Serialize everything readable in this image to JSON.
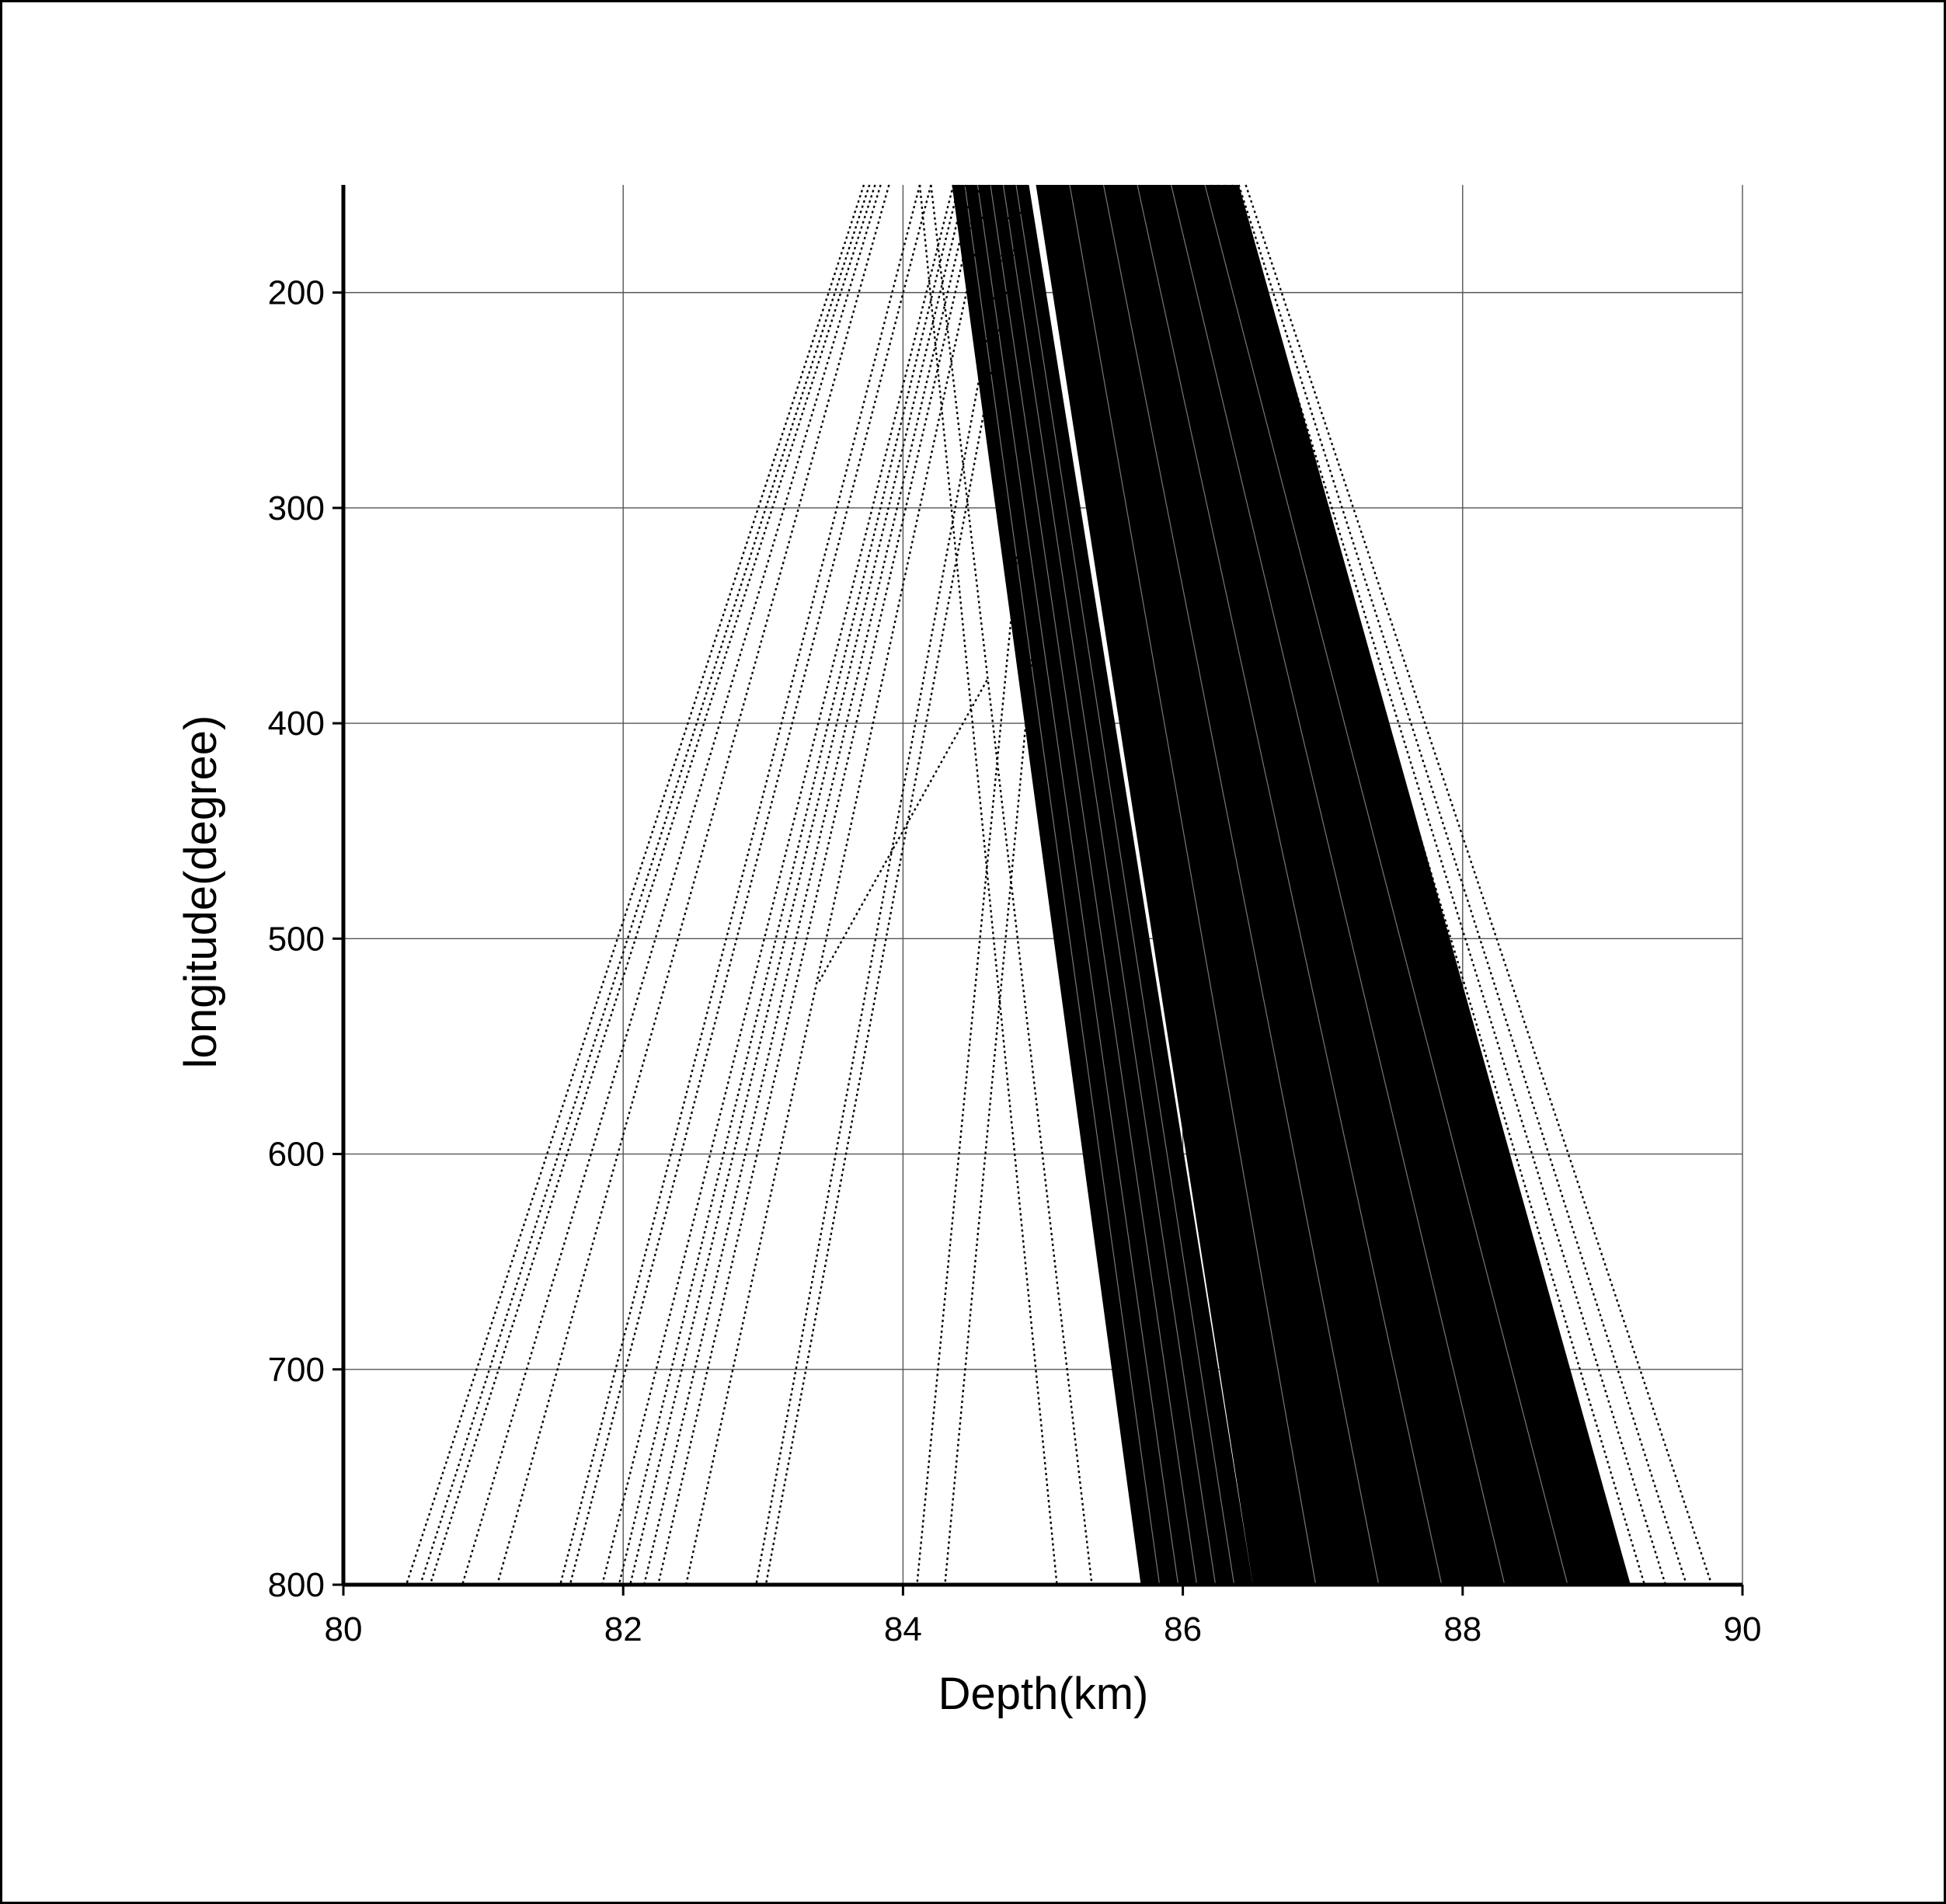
{
  "chart_data": {
    "type": "line",
    "title": "",
    "xlabel": "Depth(km)",
    "ylabel": "longitude(degree)",
    "xlim": [
      80,
      90
    ],
    "ylim": [
      150,
      800
    ],
    "y_inverted": true,
    "grid": true,
    "legend": "none",
    "colors": {
      "line": "#000000",
      "frame": "#000000",
      "grid": "#555555",
      "background": "#ffffff"
    },
    "x_ticks": [
      {
        "value": 80,
        "label": "80"
      },
      {
        "value": 82,
        "label": "82"
      },
      {
        "value": 84,
        "label": "84"
      },
      {
        "value": 86,
        "label": "86"
      },
      {
        "value": 88,
        "label": "88"
      },
      {
        "value": 90,
        "label": "90"
      }
    ],
    "y_ticks": [
      {
        "value": 200,
        "label": "200"
      },
      {
        "value": 300,
        "label": "300"
      },
      {
        "value": 400,
        "label": "400"
      },
      {
        "value": 500,
        "label": "500"
      },
      {
        "value": 600,
        "label": "600"
      },
      {
        "value": 700,
        "label": "700"
      },
      {
        "value": 800,
        "label": "800"
      }
    ],
    "series": [
      {
        "x": [
          83.72,
          80.45
        ],
        "y": [
          150,
          800
        ]
      },
      {
        "x": [
          83.76,
          80.55
        ],
        "y": [
          150,
          800
        ]
      },
      {
        "x": [
          83.8,
          80.62
        ],
        "y": [
          150,
          800
        ]
      },
      {
        "x": [
          83.84,
          80.85
        ],
        "y": [
          150,
          800
        ]
      },
      {
        "x": [
          83.9,
          81.1
        ],
        "y": [
          150,
          800
        ]
      },
      {
        "x": [
          84.12,
          81.55
        ],
        "y": [
          150,
          800
        ]
      },
      {
        "x": [
          84.2,
          81.62
        ],
        "y": [
          150,
          800
        ]
      },
      {
        "x": [
          84.36,
          81.85
        ],
        "y": [
          150,
          800
        ]
      },
      {
        "x": [
          84.4,
          81.97
        ],
        "y": [
          150,
          800
        ]
      },
      {
        "x": [
          84.45,
          82.05
        ],
        "y": [
          150,
          800
        ]
      },
      {
        "x": [
          84.5,
          82.15
        ],
        "y": [
          150,
          800
        ]
      },
      {
        "x": [
          84.55,
          82.25
        ],
        "y": [
          150,
          800
        ]
      },
      {
        "x": [
          84.62,
          82.45
        ],
        "y": [
          150,
          800
        ]
      },
      {
        "x": [
          84.8,
          82.95
        ],
        "y": [
          150,
          800
        ]
      },
      {
        "x": [
          84.88,
          83.02
        ],
        "y": [
          150,
          800
        ]
      },
      {
        "x": [
          84.12,
          85.1
        ],
        "y": [
          150,
          800
        ]
      },
      {
        "x": [
          84.2,
          85.35
        ],
        "y": [
          150,
          800
        ]
      },
      {
        "x": [
          84.85,
          84.1
        ],
        "y": [
          300,
          800
        ]
      },
      {
        "x": [
          84.95,
          84.3
        ],
        "y": [
          350,
          800
        ]
      },
      {
        "x": [
          84.6,
          83.4
        ],
        "y": [
          380,
          520
        ]
      },
      {
        "x": [
          86.2,
          88.9
        ],
        "y": [
          150,
          800
        ]
      },
      {
        "x": [
          86.25,
          89.1
        ],
        "y": [
          150,
          800
        ]
      },
      {
        "x": [
          86.3,
          89.3
        ],
        "y": [
          150,
          800
        ]
      },
      {
        "x": [
          86.35,
          89.45
        ],
        "y": [
          150,
          800
        ]
      },
      {
        "x": [
          86.4,
          89.6
        ],
        "y": [
          150,
          800
        ]
      },
      {
        "x": [
          86.45,
          89.78
        ],
        "y": [
          150,
          800
        ]
      }
    ],
    "bands": [
      {
        "x_top": [
          84.35,
          84.9
        ],
        "x_bottom": [
          85.7,
          86.5
        ],
        "y": [
          150,
          800
        ]
      },
      {
        "x_top": [
          84.95,
          86.4
        ],
        "x_bottom": [
          86.5,
          89.2
        ],
        "y": [
          150,
          800
        ]
      }
    ]
  }
}
